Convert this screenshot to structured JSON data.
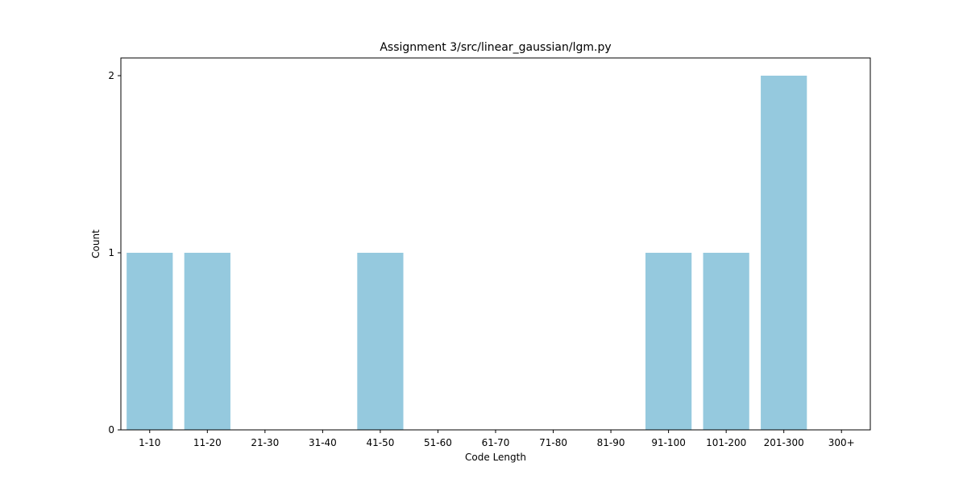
{
  "chart_data": {
    "type": "bar",
    "title": "Assignment 3/src/linear_gaussian/lgm.py",
    "xlabel": "Code Length",
    "ylabel": "Count",
    "categories": [
      "1-10",
      "11-20",
      "21-30",
      "31-40",
      "41-50",
      "51-60",
      "61-70",
      "71-80",
      "81-90",
      "91-100",
      "101-200",
      "201-300",
      "300+"
    ],
    "values": [
      1,
      1,
      0,
      0,
      1,
      0,
      0,
      0,
      0,
      1,
      1,
      2,
      0
    ],
    "ylim": [
      0,
      2.1
    ],
    "yticks": [
      0,
      1,
      2
    ],
    "grid": false,
    "bar_color": "#95c9de"
  }
}
